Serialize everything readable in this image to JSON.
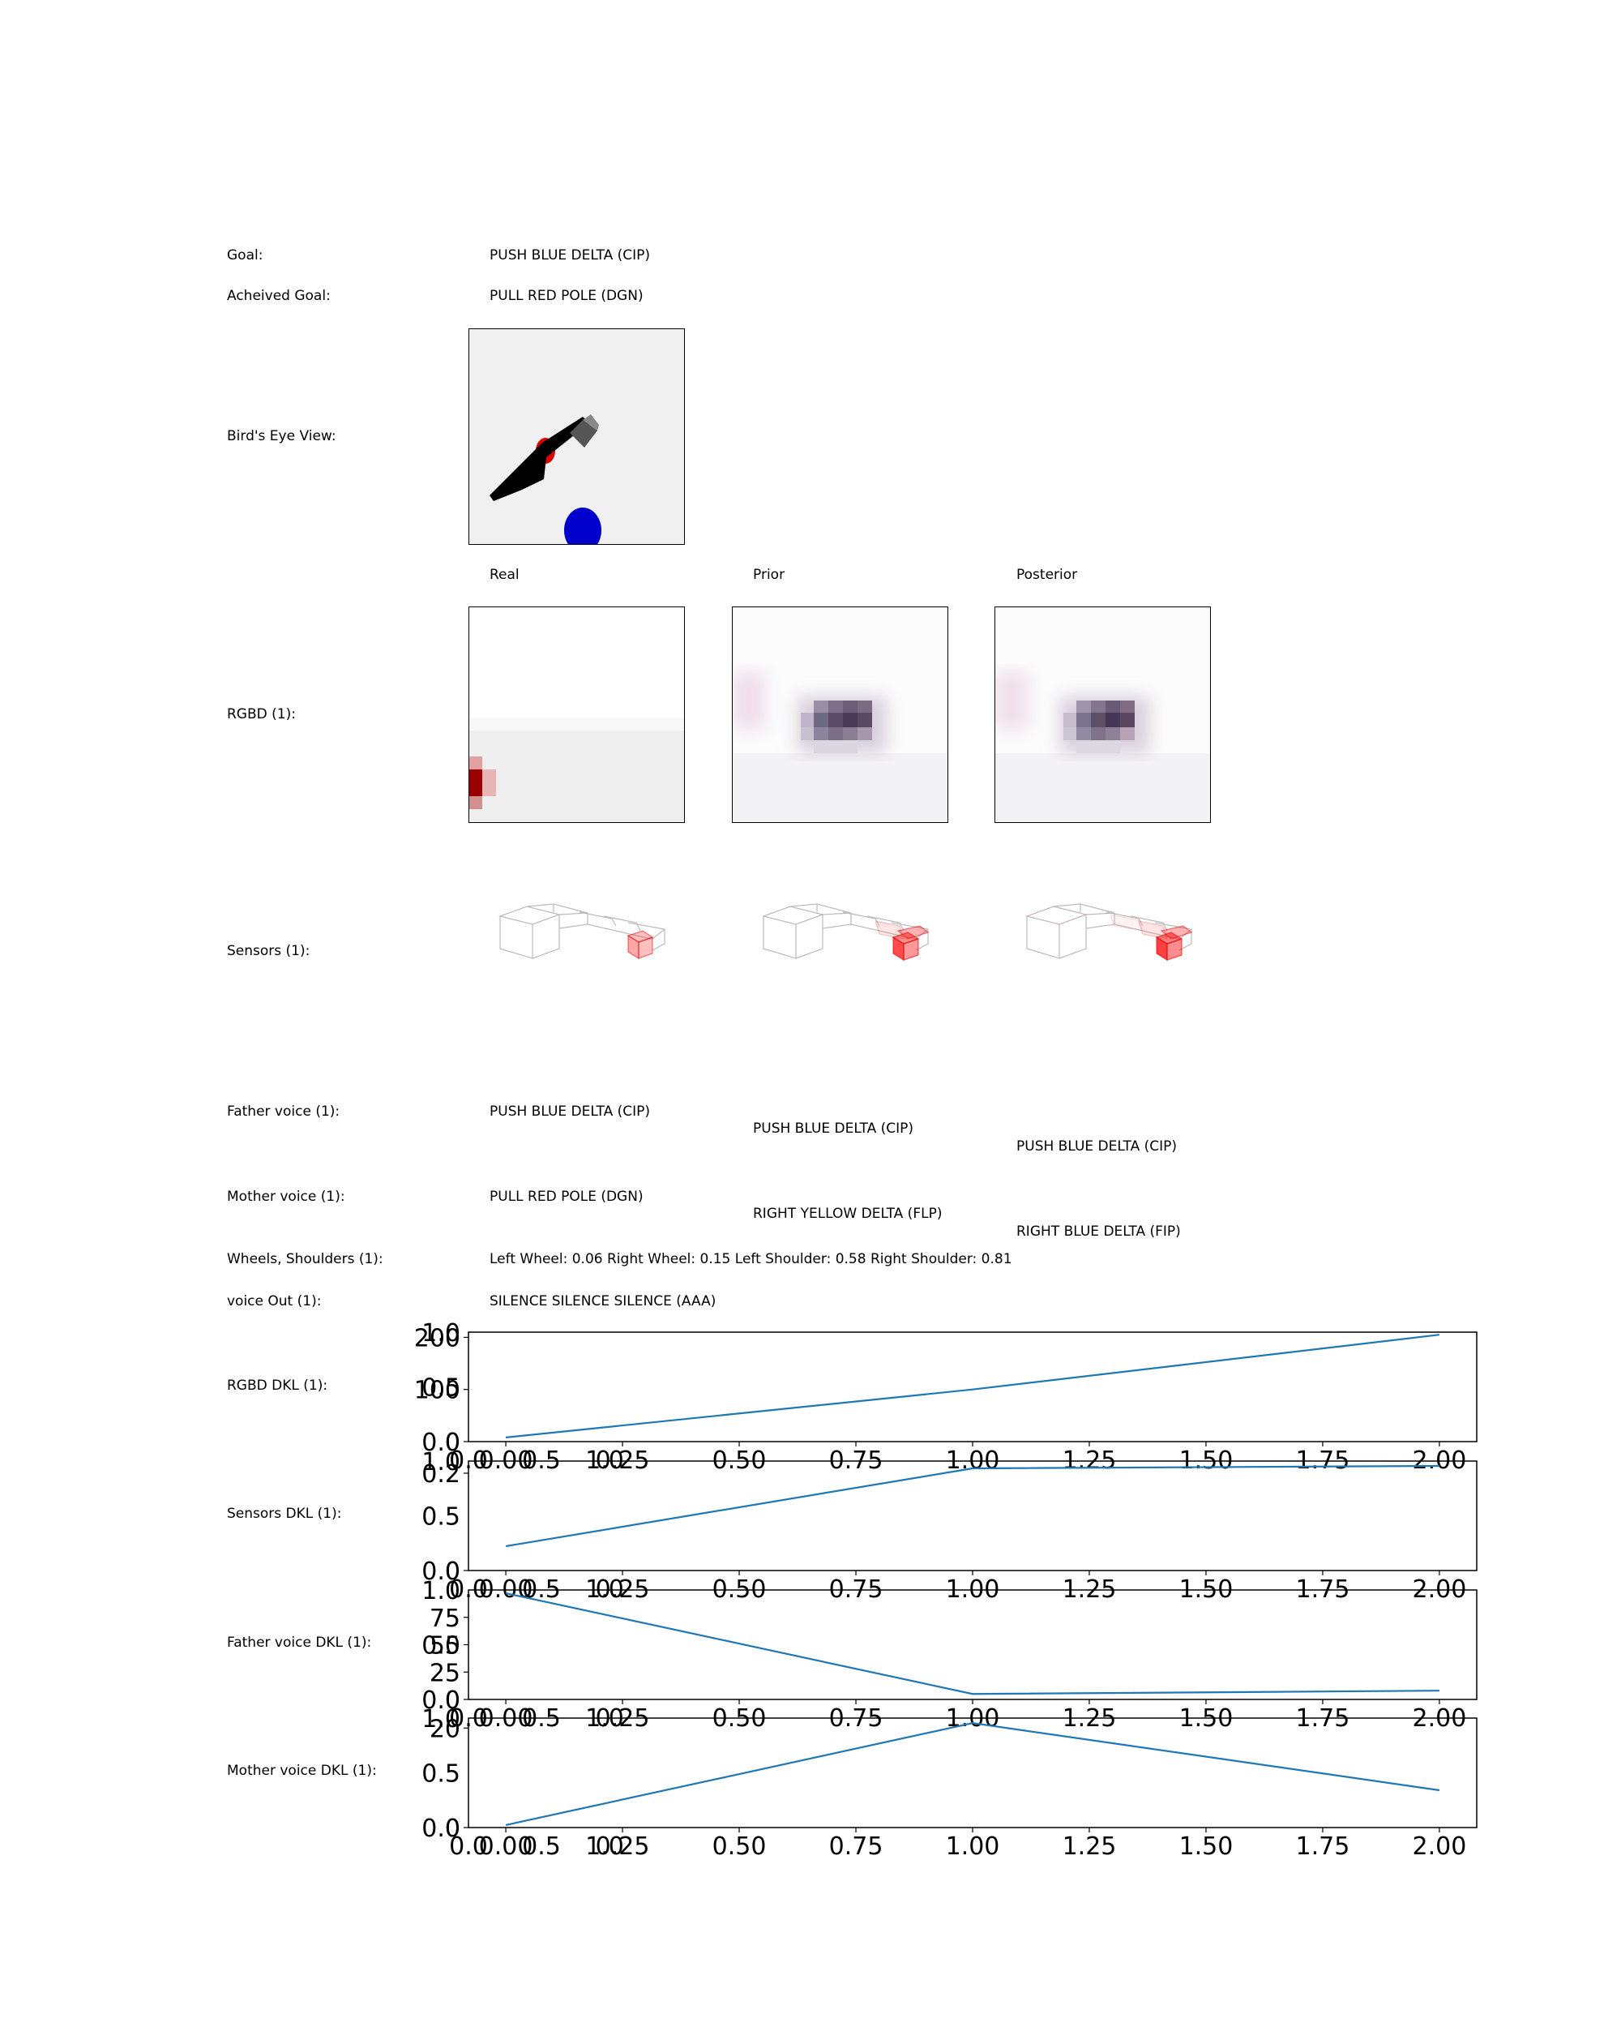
{
  "labels": {
    "goal": "Goal:",
    "achieved_goal": "Acheived Goal:",
    "birds_eye": "Bird's Eye View:",
    "rgbd": "RGBD (1):",
    "sensors": "Sensors (1):",
    "father_voice": "Father voice (1):",
    "mother_voice": "Mother voice (1):",
    "wheels_shoulders": "Wheels, Shoulders (1):",
    "voice_out": "voice Out (1):",
    "rgbd_dkl": "RGBD DKL (1):",
    "sensors_dkl": "Sensors DKL (1):",
    "father_dkl": "Father voice DKL (1):",
    "mother_dkl": "Mother voice DKL (1):"
  },
  "values": {
    "goal": "PUSH BLUE DELTA (CIP)",
    "achieved_goal": "PULL RED POLE (DGN)",
    "wheels_shoulders": "Left Wheel: 0.06 Right Wheel: 0.15 Left Shoulder: 0.58 Right Shoulder: 0.81",
    "voice_out": "SILENCE SILENCE SILENCE (AAA)"
  },
  "columns": {
    "real": "Real",
    "prior": "Prior",
    "posterior": "Posterior"
  },
  "father_voice": {
    "real": "PUSH BLUE DELTA (CIP)",
    "prior": "PUSH BLUE DELTA (CIP)",
    "posterior": "PUSH BLUE DELTA (CIP)"
  },
  "mother_voice": {
    "real": "PULL RED POLE (DGN)",
    "prior": "RIGHT YELLOW DELTA (FLP)",
    "posterior": "RIGHT BLUE DELTA (FIP)"
  },
  "colors": {
    "line": "#1f77b4",
    "panel_bg": "#f0f0f0",
    "blue_object": "#0000cc",
    "red_object": "#dd0000"
  },
  "chart_data": [
    {
      "type": "line",
      "name": "RGBD DKL",
      "x": [
        0,
        1,
        2
      ],
      "values": [
        8,
        100,
        205
      ],
      "xlim": [
        -0.08,
        2.08
      ],
      "ylim": [
        0,
        210
      ],
      "xticks": [
        "0.00",
        "0.25",
        "0.50",
        "0.75",
        "1.00",
        "1.25",
        "1.50",
        "1.75",
        "2.00"
      ],
      "yticks": [
        "0",
        "100",
        "200"
      ],
      "overlay_xticks": [
        "0.0",
        "0.5",
        "1.0"
      ],
      "overlay_yticks": [
        "0.0",
        "0.5",
        "1.0"
      ]
    },
    {
      "type": "line",
      "name": "Sensors DKL",
      "x": [
        0,
        1,
        2
      ],
      "values": [
        0.05,
        0.21,
        0.215
      ],
      "xlim": [
        -0.08,
        2.08
      ],
      "ylim": [
        0,
        0.225
      ],
      "xticks": [
        "0.00",
        "0.25",
        "0.50",
        "0.75",
        "1.00",
        "1.25",
        "1.50",
        "1.75",
        "2.00"
      ],
      "yticks": [
        "0",
        "0.2"
      ],
      "overlay_xticks": [
        "0.0",
        "0.5",
        "1.0"
      ],
      "overlay_yticks": [
        "0.0",
        "0.5",
        "1.0"
      ]
    },
    {
      "type": "line",
      "name": "Father voice DKL",
      "x": [
        0,
        1,
        2
      ],
      "values": [
        97,
        5,
        8
      ],
      "xlim": [
        -0.08,
        2.08
      ],
      "ylim": [
        0,
        100
      ],
      "xticks": [
        "0.00",
        "0.25",
        "0.50",
        "0.75",
        "1.00",
        "1.25",
        "1.50",
        "1.75",
        "2.00"
      ],
      "yticks": [
        "0",
        "25",
        "50",
        "75"
      ],
      "overlay_xticks": [
        "0.0",
        "0.5",
        "1.0"
      ],
      "overlay_yticks": [
        "0.0",
        "0.5",
        "1.0"
      ]
    },
    {
      "type": "line",
      "name": "Mother voice DKL",
      "x": [
        0,
        1,
        2
      ],
      "values": [
        0.5,
        21,
        7.5
      ],
      "xlim": [
        -0.08,
        2.08
      ],
      "ylim": [
        0,
        22
      ],
      "xticks": [
        "0.00",
        "0.25",
        "0.50",
        "0.75",
        "1.00",
        "1.25",
        "1.50",
        "1.75",
        "2.00"
      ],
      "yticks": [
        "0",
        "20"
      ],
      "overlay_xticks": [
        "0.0",
        "0.5",
        "1.0"
      ],
      "overlay_yticks": [
        "0.0",
        "0.5",
        "1.0"
      ]
    }
  ]
}
